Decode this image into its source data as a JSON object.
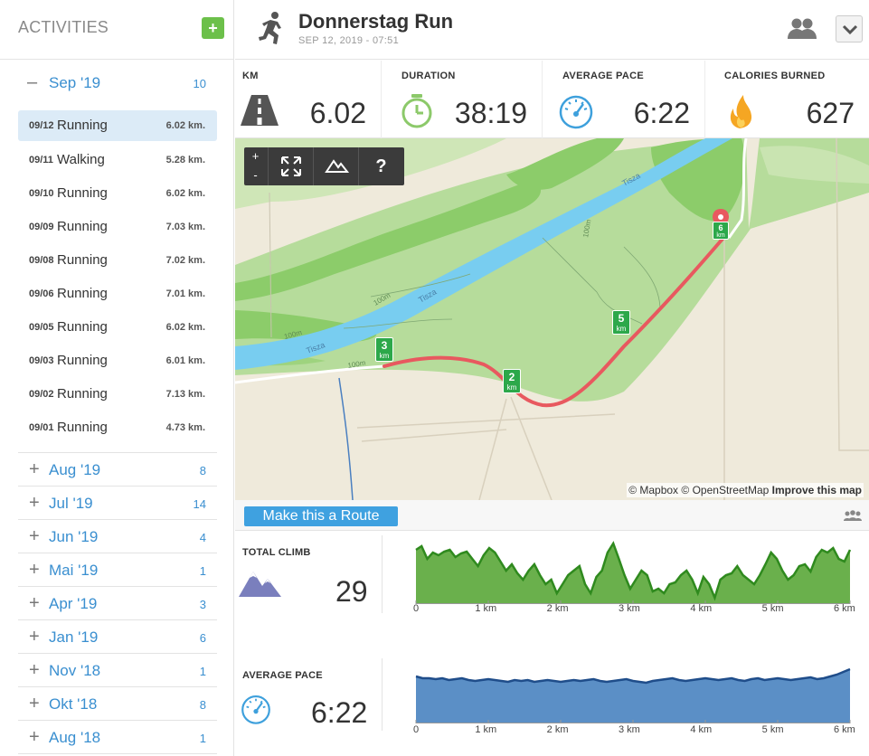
{
  "sidebar": {
    "title": "ACTIVITIES",
    "add_label": "+",
    "open_month": {
      "sign": "–",
      "label": "Sep '19",
      "count": "10"
    },
    "activities": [
      {
        "date": "09/12",
        "type": "Running",
        "distance": "6.02 km.",
        "selected": true
      },
      {
        "date": "09/11",
        "type": "Walking",
        "distance": "5.28 km."
      },
      {
        "date": "09/10",
        "type": "Running",
        "distance": "6.02 km."
      },
      {
        "date": "09/09",
        "type": "Running",
        "distance": "7.03 km."
      },
      {
        "date": "09/08",
        "type": "Running",
        "distance": "7.02 km."
      },
      {
        "date": "09/06",
        "type": "Running",
        "distance": "7.01 km."
      },
      {
        "date": "09/05",
        "type": "Running",
        "distance": "6.02 km."
      },
      {
        "date": "09/03",
        "type": "Running",
        "distance": "6.01 km."
      },
      {
        "date": "09/02",
        "type": "Running",
        "distance": "7.13 km."
      },
      {
        "date": "09/01",
        "type": "Running",
        "distance": "4.73 km."
      }
    ],
    "months": [
      {
        "sign": "+",
        "label": "Aug '19",
        "count": "8"
      },
      {
        "sign": "+",
        "label": "Jul '19",
        "count": "14"
      },
      {
        "sign": "+",
        "label": "Jun '19",
        "count": "4"
      },
      {
        "sign": "+",
        "label": "Mai '19",
        "count": "1"
      },
      {
        "sign": "+",
        "label": "Apr '19",
        "count": "3"
      },
      {
        "sign": "+",
        "label": "Jan '19",
        "count": "6"
      },
      {
        "sign": "+",
        "label": "Nov '18",
        "count": "1"
      },
      {
        "sign": "+",
        "label": "Okt '18",
        "count": "8"
      },
      {
        "sign": "+",
        "label": "Aug '18",
        "count": "1"
      }
    ]
  },
  "header": {
    "title": "Donnerstag Run",
    "subtitle": "SEP 12, 2019  -  07:51",
    "icons": {
      "activity": "running-person-icon",
      "users": "users-icon",
      "dropdown": "chevron-down-icon"
    }
  },
  "stats": [
    {
      "label": "KM",
      "value": "6.02",
      "icon": "road-icon"
    },
    {
      "label": "DURATION",
      "value": "38:19",
      "icon": "stopwatch-icon"
    },
    {
      "label": "AVERAGE PACE",
      "value": "6:22",
      "icon": "speedometer-icon"
    },
    {
      "label": "CALORIES BURNED",
      "value": "627",
      "icon": "flame-icon"
    }
  ],
  "map": {
    "controls": {
      "zoom_in": "+",
      "zoom_out": "-",
      "help": "?"
    },
    "attribution": {
      "a": "© Mapbox",
      "b": "© OpenStreetMap",
      "c": "Improve this map"
    },
    "labels": {
      "river_1": "Tisza",
      "river_2": "Tisza",
      "river_3": "Tisza",
      "contour_1": "100m",
      "contour_2": "100m",
      "contour_3": "100m",
      "contour_4": "100m"
    },
    "km_markers": [
      {
        "n": "2",
        "u": "km"
      },
      {
        "n": "3",
        "u": "km"
      },
      {
        "n": "5",
        "u": "km"
      },
      {
        "n": "6",
        "u": "km"
      }
    ],
    "colors": {
      "land": "#efeadb",
      "green": "#a8d68a",
      "forest": "#7cc35a",
      "river": "#78cdf0",
      "route": "#e8595f"
    }
  },
  "route_bar": {
    "button": "Make this a Route",
    "icon": "group-icon"
  },
  "elevation": {
    "label": "TOTAL CLIMB",
    "value": "29",
    "icon": "mountains-icon",
    "x_ticks": [
      "0",
      "1 km",
      "2 km",
      "3 km",
      "4 km",
      "5 km",
      "6 km"
    ],
    "color": "#6ab04c"
  },
  "pace": {
    "label": "AVERAGE PACE",
    "value": "6:22",
    "icon": "speedometer-icon",
    "x_ticks": [
      "0",
      "1 km",
      "2 km",
      "3 km",
      "4 km",
      "5 km",
      "6 km"
    ],
    "color": "#5b8fc6"
  }
}
